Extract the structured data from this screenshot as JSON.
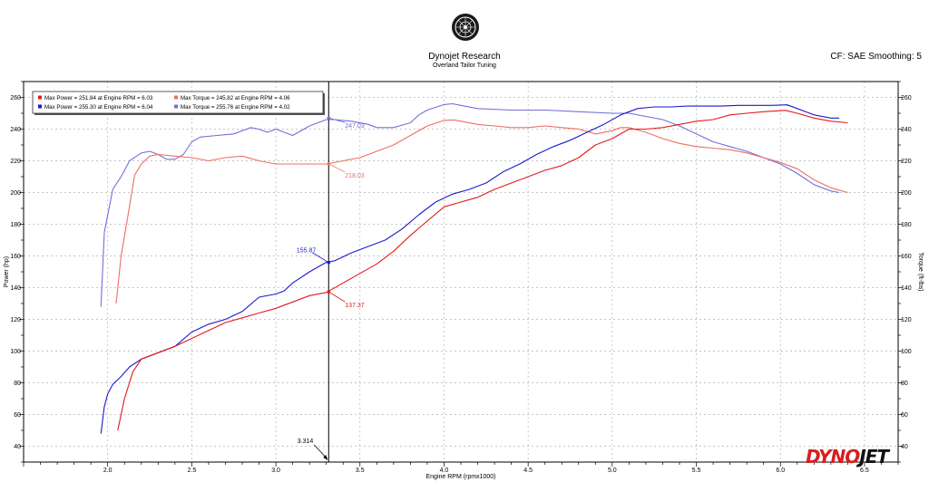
{
  "header": {
    "title": "Dynojet Research",
    "subtitle": "Overland Tailor Tuning",
    "cf_label": "CF: SAE Smoothing: 5"
  },
  "brand": {
    "part1": "DYNO",
    "part2": "JET"
  },
  "colors": {
    "power_run1": "#e31a1a",
    "power_run2": "#1a1acc",
    "torque_run1": "#ee6e62",
    "torque_run2": "#7070dc",
    "cursor": "#000000",
    "grid": "#b4b4b4",
    "background": "#ffffff"
  },
  "chart_data": {
    "type": "line",
    "xlabel": "Engine RPM (rpmx1000)",
    "ylabel": "Power (hp)",
    "ylabel_right": "Torque (ft-lbs)",
    "xlim": [
      1.5,
      6.7
    ],
    "ylim": [
      30,
      270
    ],
    "ylim_right": [
      30,
      270
    ],
    "x_ticks": [
      2.0,
      2.5,
      3.0,
      3.5,
      4.0,
      4.5,
      5.0,
      5.5,
      6.0,
      6.5
    ],
    "y_ticks": [
      40,
      60,
      80,
      100,
      120,
      140,
      160,
      180,
      200,
      220,
      240,
      260
    ],
    "grid": true,
    "legend_position": "top-left",
    "legend": [
      "Max Power = 251.84 at Engine RPM = 6.03",
      "Max Torque = 245.82 at Engine RPM = 4.06",
      "Max Power = 255.30 at Engine RPM = 6.04",
      "Max Torque = 255.76 at Engine RPM = 4.02"
    ],
    "cursor": {
      "x": 3.314,
      "label": "3.314",
      "values": [
        {
          "label": "247.03",
          "value": 247.03,
          "series": "torque_run2"
        },
        {
          "label": "218.03",
          "value": 218.03,
          "series": "torque_run1"
        },
        {
          "label": "155.87",
          "value": 155.87,
          "series": "power_run2"
        },
        {
          "label": "137.37",
          "value": 137.37,
          "series": "power_run1"
        }
      ]
    },
    "series": [
      {
        "key": "torque_run2",
        "axis": "right",
        "points": [
          [
            1.96,
            128
          ],
          [
            1.98,
            175
          ],
          [
            2.03,
            202
          ],
          [
            2.08,
            210
          ],
          [
            2.13,
            220
          ],
          [
            2.2,
            225
          ],
          [
            2.25,
            226
          ],
          [
            2.3,
            224
          ],
          [
            2.35,
            221
          ],
          [
            2.4,
            221
          ],
          [
            2.45,
            224
          ],
          [
            2.5,
            232
          ],
          [
            2.55,
            235
          ],
          [
            2.65,
            236
          ],
          [
            2.75,
            237
          ],
          [
            2.85,
            241
          ],
          [
            2.9,
            240
          ],
          [
            2.95,
            238
          ],
          [
            3.0,
            240
          ],
          [
            3.05,
            238
          ],
          [
            3.1,
            236
          ],
          [
            3.2,
            242
          ],
          [
            3.3,
            246
          ],
          [
            3.35,
            246
          ],
          [
            3.45,
            245
          ],
          [
            3.55,
            243
          ],
          [
            3.6,
            241
          ],
          [
            3.7,
            241
          ],
          [
            3.8,
            244
          ],
          [
            3.85,
            249
          ],
          [
            3.9,
            252
          ],
          [
            4.0,
            255.5
          ],
          [
            4.05,
            256
          ],
          [
            4.1,
            255
          ],
          [
            4.2,
            253
          ],
          [
            4.4,
            252
          ],
          [
            4.6,
            252
          ],
          [
            4.8,
            251
          ],
          [
            5.0,
            250
          ],
          [
            5.1,
            250
          ],
          [
            5.2,
            248
          ],
          [
            5.3,
            246
          ],
          [
            5.4,
            242
          ],
          [
            5.5,
            237
          ],
          [
            5.6,
            232
          ],
          [
            5.7,
            229
          ],
          [
            5.8,
            226
          ],
          [
            5.9,
            222
          ],
          [
            6.0,
            218
          ],
          [
            6.1,
            212
          ],
          [
            6.2,
            205
          ],
          [
            6.3,
            201
          ],
          [
            6.35,
            200
          ]
        ]
      },
      {
        "key": "torque_run1",
        "axis": "right",
        "points": [
          [
            2.05,
            130
          ],
          [
            2.08,
            160
          ],
          [
            2.12,
            185
          ],
          [
            2.16,
            211
          ],
          [
            2.2,
            218
          ],
          [
            2.25,
            223
          ],
          [
            2.3,
            224
          ],
          [
            2.4,
            223
          ],
          [
            2.5,
            222
          ],
          [
            2.6,
            220
          ],
          [
            2.7,
            222
          ],
          [
            2.8,
            223
          ],
          [
            2.9,
            220
          ],
          [
            3.0,
            218
          ],
          [
            3.1,
            218
          ],
          [
            3.2,
            218
          ],
          [
            3.3,
            218
          ],
          [
            3.4,
            220
          ],
          [
            3.5,
            222
          ],
          [
            3.6,
            226
          ],
          [
            3.7,
            230
          ],
          [
            3.8,
            236
          ],
          [
            3.9,
            242
          ],
          [
            4.0,
            245.5
          ],
          [
            4.06,
            245.8
          ],
          [
            4.1,
            245
          ],
          [
            4.2,
            243
          ],
          [
            4.3,
            242
          ],
          [
            4.4,
            241
          ],
          [
            4.5,
            241
          ],
          [
            4.6,
            242
          ],
          [
            4.7,
            241
          ],
          [
            4.8,
            240
          ],
          [
            4.9,
            237
          ],
          [
            5.0,
            239
          ],
          [
            5.05,
            241
          ],
          [
            5.1,
            241
          ],
          [
            5.2,
            238
          ],
          [
            5.3,
            234
          ],
          [
            5.4,
            231
          ],
          [
            5.5,
            229
          ],
          [
            5.6,
            228
          ],
          [
            5.7,
            227
          ],
          [
            5.8,
            225
          ],
          [
            5.9,
            222
          ],
          [
            6.0,
            219
          ],
          [
            6.1,
            215
          ],
          [
            6.2,
            208
          ],
          [
            6.3,
            203
          ],
          [
            6.4,
            200
          ]
        ]
      },
      {
        "key": "power_run2",
        "axis": "left",
        "points": [
          [
            1.96,
            48
          ],
          [
            1.98,
            65
          ],
          [
            2.0,
            73
          ],
          [
            2.03,
            79
          ],
          [
            2.08,
            84
          ],
          [
            2.13,
            90
          ],
          [
            2.2,
            95
          ],
          [
            2.3,
            99
          ],
          [
            2.4,
            103
          ],
          [
            2.5,
            112
          ],
          [
            2.6,
            117
          ],
          [
            2.7,
            120
          ],
          [
            2.8,
            125
          ],
          [
            2.9,
            134
          ],
          [
            3.0,
            136
          ],
          [
            3.05,
            138
          ],
          [
            3.1,
            143
          ],
          [
            3.2,
            150
          ],
          [
            3.3,
            156
          ],
          [
            3.35,
            157
          ],
          [
            3.45,
            162
          ],
          [
            3.55,
            166
          ],
          [
            3.65,
            170
          ],
          [
            3.75,
            177
          ],
          [
            3.85,
            186
          ],
          [
            3.95,
            194
          ],
          [
            4.05,
            199
          ],
          [
            4.15,
            202
          ],
          [
            4.25,
            206
          ],
          [
            4.35,
            213
          ],
          [
            4.45,
            218
          ],
          [
            4.55,
            224
          ],
          [
            4.65,
            229
          ],
          [
            4.75,
            233
          ],
          [
            4.85,
            238
          ],
          [
            4.95,
            243
          ],
          [
            5.05,
            249
          ],
          [
            5.15,
            253
          ],
          [
            5.25,
            254
          ],
          [
            5.35,
            254
          ],
          [
            5.45,
            254.5
          ],
          [
            5.55,
            254.5
          ],
          [
            5.65,
            254.5
          ],
          [
            5.75,
            255
          ],
          [
            5.85,
            255
          ],
          [
            5.95,
            255
          ],
          [
            6.04,
            255.3
          ],
          [
            6.1,
            253
          ],
          [
            6.2,
            249
          ],
          [
            6.3,
            247
          ],
          [
            6.35,
            247
          ]
        ]
      },
      {
        "key": "power_run1",
        "axis": "left",
        "points": [
          [
            2.06,
            50
          ],
          [
            2.1,
            70
          ],
          [
            2.15,
            87
          ],
          [
            2.2,
            95
          ],
          [
            2.3,
            99
          ],
          [
            2.4,
            103
          ],
          [
            2.5,
            108
          ],
          [
            2.6,
            113
          ],
          [
            2.7,
            118
          ],
          [
            2.8,
            121
          ],
          [
            2.9,
            124
          ],
          [
            3.0,
            127
          ],
          [
            3.1,
            131
          ],
          [
            3.2,
            135
          ],
          [
            3.3,
            137
          ],
          [
            3.4,
            143
          ],
          [
            3.5,
            149
          ],
          [
            3.6,
            155
          ],
          [
            3.7,
            163
          ],
          [
            3.8,
            173
          ],
          [
            3.9,
            182
          ],
          [
            4.0,
            191
          ],
          [
            4.1,
            194
          ],
          [
            4.2,
            197
          ],
          [
            4.3,
            202
          ],
          [
            4.4,
            206
          ],
          [
            4.5,
            210
          ],
          [
            4.6,
            214
          ],
          [
            4.7,
            217
          ],
          [
            4.8,
            222
          ],
          [
            4.9,
            230
          ],
          [
            5.0,
            234
          ],
          [
            5.1,
            240
          ],
          [
            5.2,
            240
          ],
          [
            5.3,
            241
          ],
          [
            5.4,
            243
          ],
          [
            5.5,
            245
          ],
          [
            5.6,
            246
          ],
          [
            5.7,
            249
          ],
          [
            5.8,
            250
          ],
          [
            5.9,
            251
          ],
          [
            6.03,
            251.8
          ],
          [
            6.1,
            250
          ],
          [
            6.2,
            247
          ],
          [
            6.3,
            245
          ],
          [
            6.4,
            244
          ]
        ]
      }
    ]
  }
}
